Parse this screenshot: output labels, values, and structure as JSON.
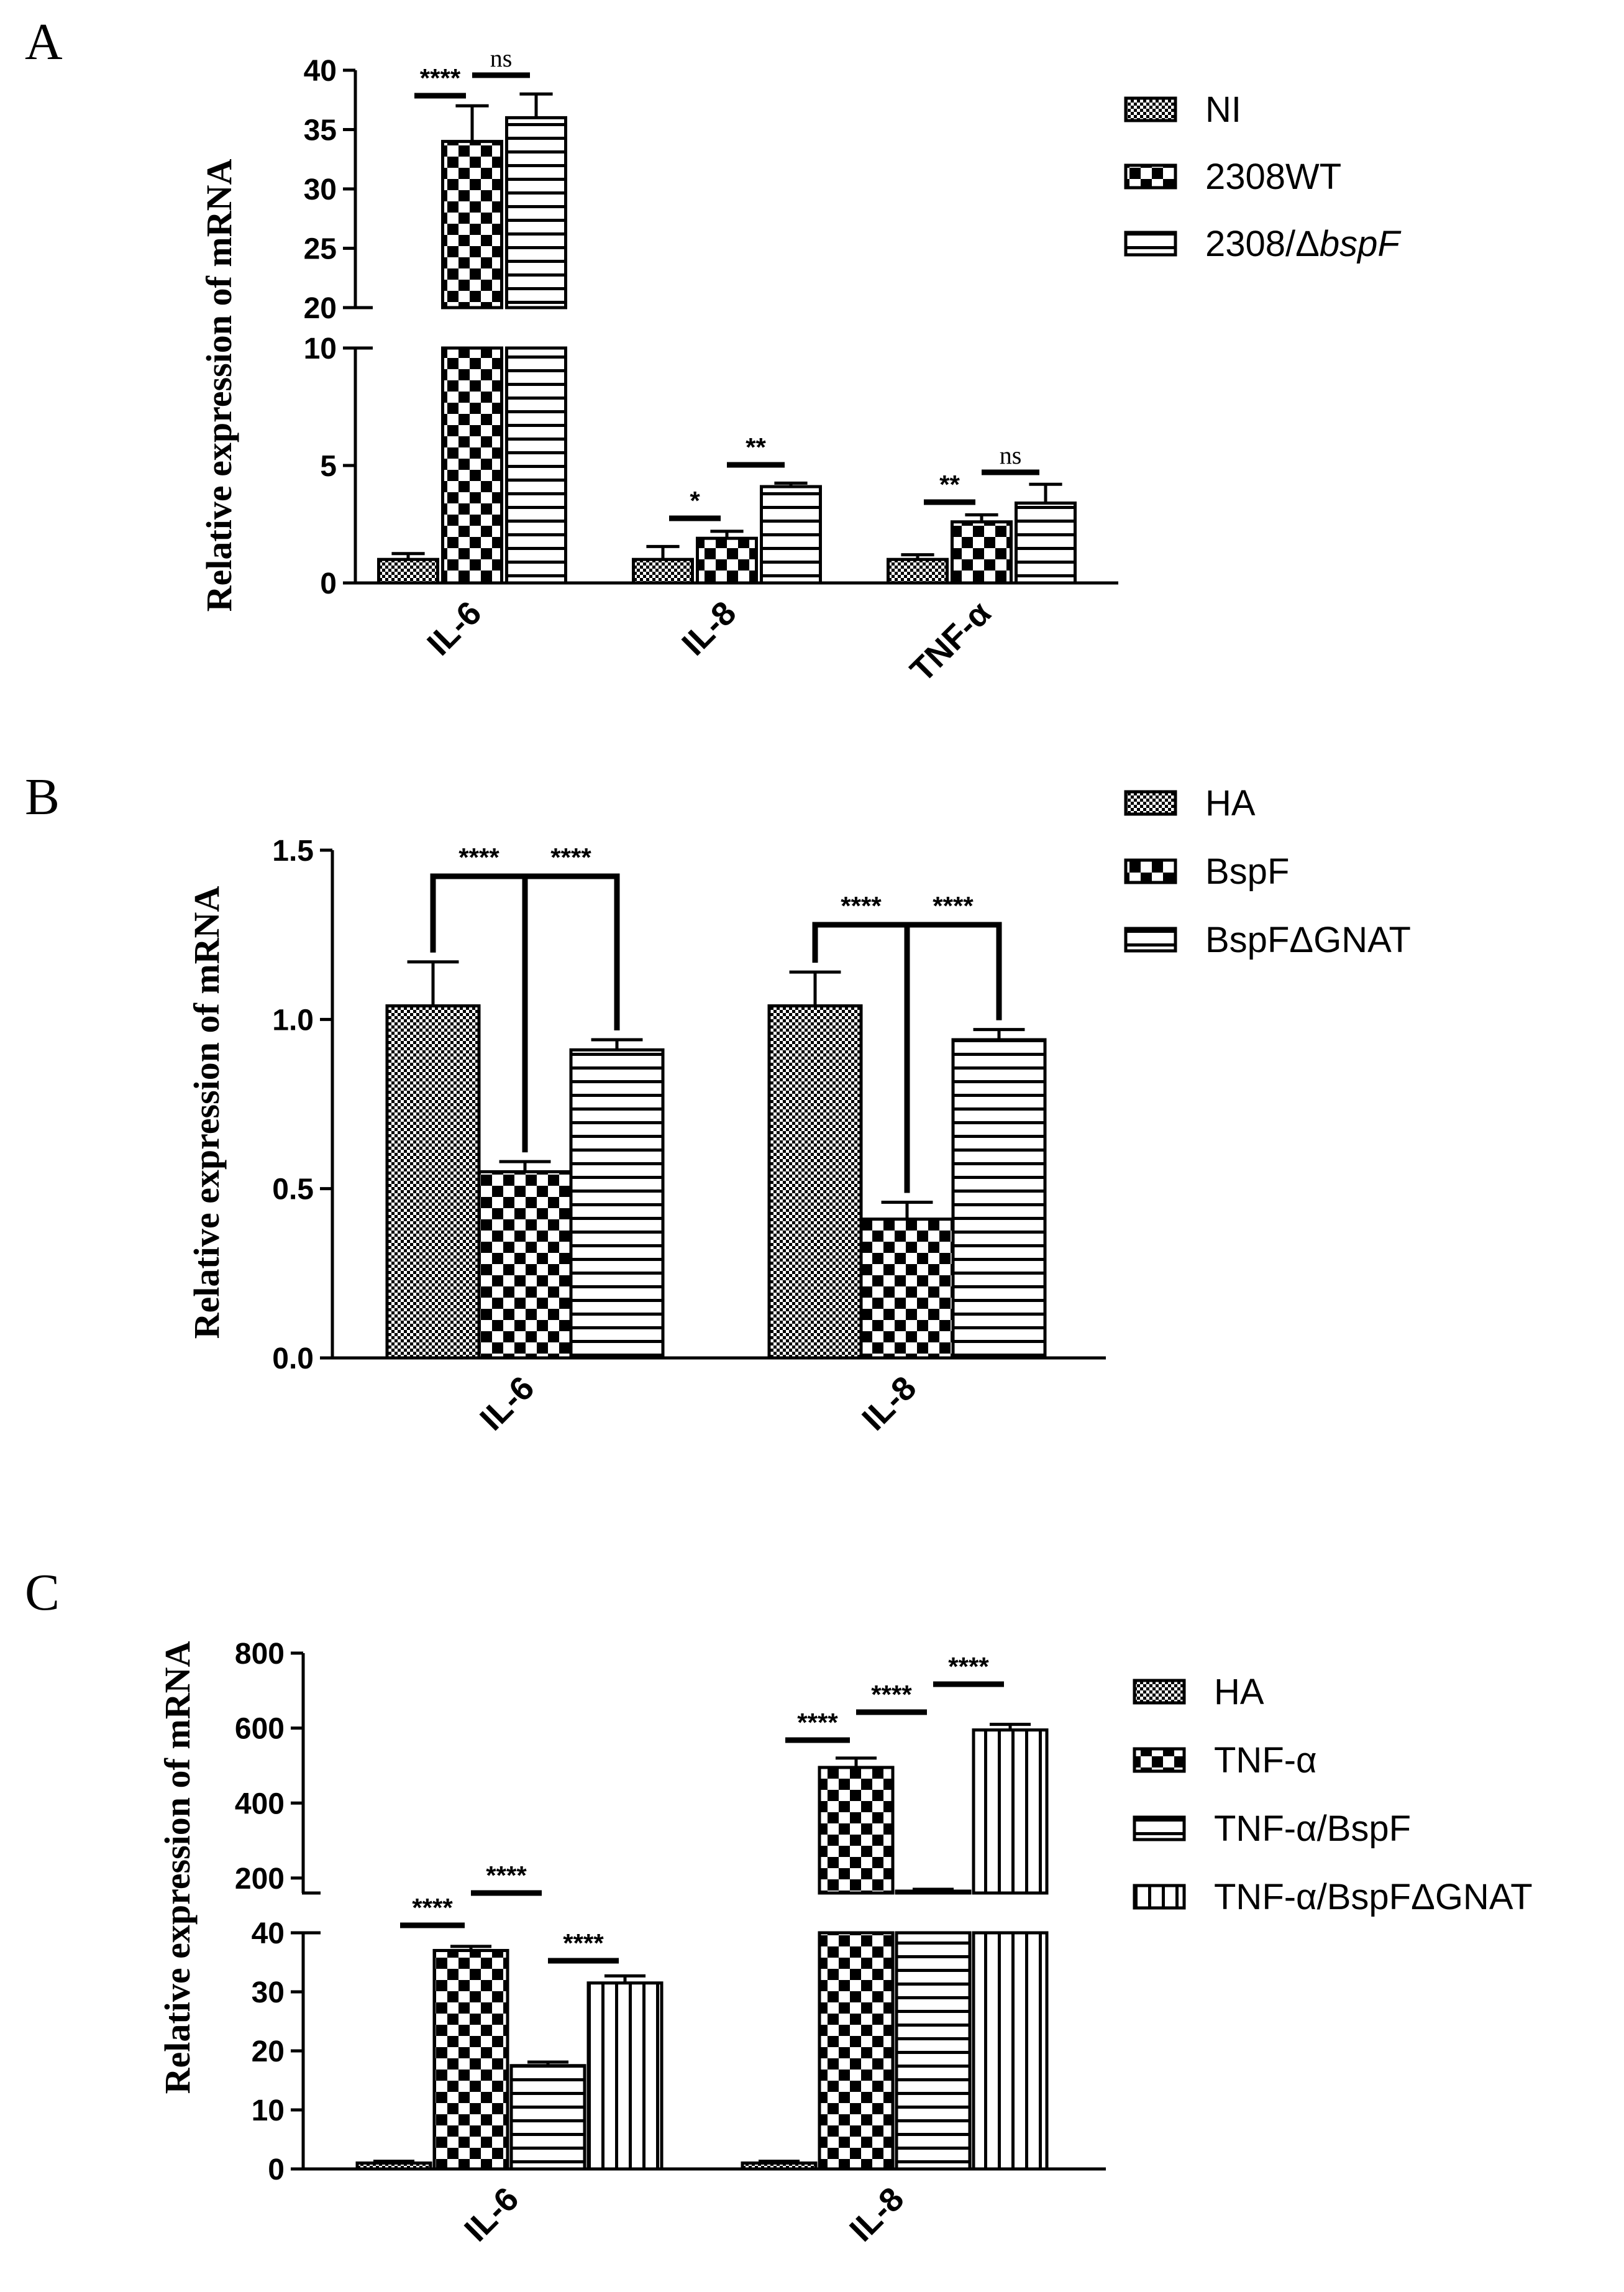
{
  "colors": {
    "ink": "#000000",
    "paper": "#ffffff"
  },
  "chart_data": [
    {
      "panel_label": "A",
      "type": "bar",
      "ylabel": "Relative expression of mRNA",
      "categories": [
        "IL-6",
        "IL-8",
        "TNF-α"
      ],
      "axis_break": {
        "lower_ylim": [
          0,
          10
        ],
        "upper_ylim": [
          20,
          40
        ]
      },
      "lower_ticks": [
        "0",
        "5",
        "10"
      ],
      "upper_ticks": [
        "20",
        "25",
        "30",
        "35",
        "40"
      ],
      "legend": [
        {
          "name": "NI",
          "pattern": "fine-check"
        },
        {
          "name": "2308WT",
          "pattern": "coarse-check"
        },
        {
          "name_main": "2308/Δ",
          "name_italic": "bspF",
          "pattern": "hstripe"
        }
      ],
      "series": [
        {
          "name": "NI",
          "values": [
            1.0,
            1.0,
            1.0
          ],
          "errors": [
            0.25,
            0.55,
            0.2
          ]
        },
        {
          "name": "2308WT",
          "values": [
            34.0,
            1.9,
            2.6
          ],
          "errors": [
            3.0,
            0.3,
            0.3
          ]
        },
        {
          "name": "2308/ΔbspF",
          "values": [
            36.0,
            4.1,
            3.4
          ],
          "errors": [
            2.0,
            0.15,
            0.8
          ]
        }
      ],
      "significance": [
        {
          "cat": 0,
          "from": 0,
          "to": 1,
          "label": "****"
        },
        {
          "cat": 0,
          "from": 1,
          "to": 2,
          "label": "ns"
        },
        {
          "cat": 1,
          "from": 0,
          "to": 1,
          "label": "*"
        },
        {
          "cat": 1,
          "from": 1,
          "to": 2,
          "label": "**"
        },
        {
          "cat": 2,
          "from": 0,
          "to": 1,
          "label": "**"
        },
        {
          "cat": 2,
          "from": 1,
          "to": 2,
          "label": "ns"
        }
      ]
    },
    {
      "panel_label": "B",
      "type": "bar",
      "ylabel": "Relative expression of mRNA",
      "categories": [
        "IL-6",
        "IL-8"
      ],
      "ylim": [
        0,
        1.5
      ],
      "ticks": [
        "0.0",
        "0.5",
        "1.0",
        "1.5"
      ],
      "legend": [
        {
          "name": "HA",
          "pattern": "fine-check"
        },
        {
          "name": "BspF",
          "pattern": "coarse-check"
        },
        {
          "name": "BspFΔGNAT",
          "pattern": "hstripe"
        }
      ],
      "series": [
        {
          "name": "HA",
          "values": [
            1.04,
            1.04
          ],
          "errors": [
            0.13,
            0.1
          ]
        },
        {
          "name": "BspF",
          "values": [
            0.55,
            0.41
          ],
          "errors": [
            0.03,
            0.05
          ]
        },
        {
          "name": "BspFΔGNAT",
          "values": [
            0.91,
            0.94
          ],
          "errors": [
            0.03,
            0.03
          ]
        }
      ],
      "significance": [
        {
          "cat": 0,
          "from": 0,
          "to": 1,
          "label": "****"
        },
        {
          "cat": 0,
          "from": 1,
          "to": 2,
          "label": "****"
        },
        {
          "cat": 1,
          "from": 0,
          "to": 1,
          "label": "****"
        },
        {
          "cat": 1,
          "from": 1,
          "to": 2,
          "label": "****"
        }
      ]
    },
    {
      "panel_label": "C",
      "type": "bar",
      "ylabel": "Relative expression of mRNA",
      "categories": [
        "IL-6",
        "IL-8"
      ],
      "axis_break": {
        "lower_ylim": [
          0,
          40
        ],
        "upper_ylim": [
          160,
          800
        ]
      },
      "lower_ticks": [
        "0",
        "10",
        "20",
        "30",
        "40"
      ],
      "upper_ticks": [
        "200",
        "400",
        "600",
        "800"
      ],
      "legend": [
        {
          "name": "HA",
          "pattern": "fine-check"
        },
        {
          "name": "TNF-α",
          "pattern": "coarse-check"
        },
        {
          "name": "TNF-α/BspF",
          "pattern": "hstripe"
        },
        {
          "name": "TNF-α/BspFΔGNAT",
          "pattern": "vstripe"
        }
      ],
      "series": [
        {
          "name": "HA",
          "values": [
            1.0,
            1.0
          ],
          "errors": [
            0.3,
            0.3
          ]
        },
        {
          "name": "TNF-α",
          "values": [
            37.0,
            495.0
          ],
          "errors": [
            0.7,
            25.0
          ]
        },
        {
          "name": "TNF-α/BspF",
          "values": [
            17.5,
            165.0
          ],
          "errors": [
            0.6,
            5.0
          ]
        },
        {
          "name": "TNF-α/BspFΔGNAT",
          "values": [
            31.5,
            595.0
          ],
          "errors": [
            1.2,
            15.0
          ]
        }
      ],
      "significance": [
        {
          "cat": 0,
          "from": 0,
          "to": 1,
          "label": "****"
        },
        {
          "cat": 0,
          "from": 1,
          "to": 2,
          "label": "****"
        },
        {
          "cat": 0,
          "from": 2,
          "to": 3,
          "label": "****"
        },
        {
          "cat": 1,
          "from": 0,
          "to": 1,
          "label": "****"
        },
        {
          "cat": 1,
          "from": 1,
          "to": 2,
          "label": "****"
        },
        {
          "cat": 1,
          "from": 2,
          "to": 3,
          "label": "****"
        }
      ]
    }
  ]
}
